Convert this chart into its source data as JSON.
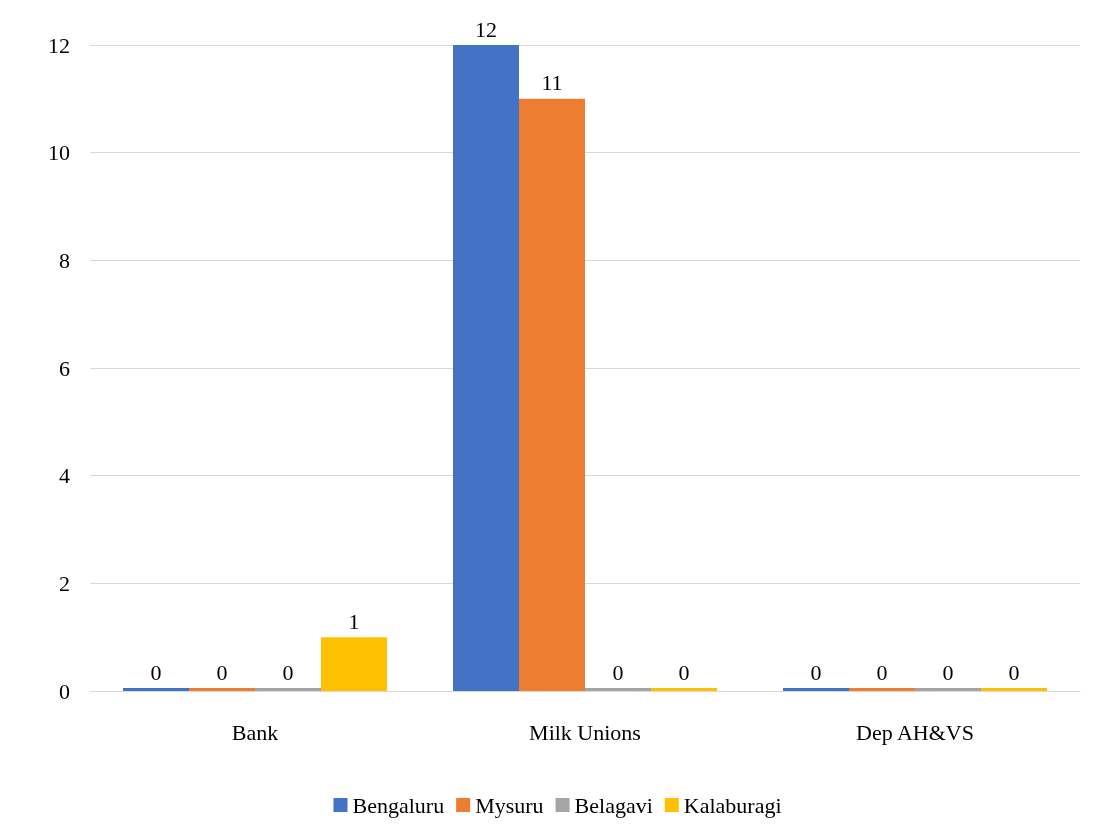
{
  "chart_data": {
    "type": "bar",
    "categories": [
      "Bank",
      "Milk Unions",
      "Dep AH&VS"
    ],
    "series": [
      {
        "name": "Bengaluru",
        "color": "#4472c4",
        "values": [
          0,
          12,
          0
        ]
      },
      {
        "name": "Mysuru",
        "color": "#ed7d31",
        "values": [
          0,
          11,
          0
        ]
      },
      {
        "name": "Belagavi",
        "color": "#a5a5a5",
        "values": [
          0,
          0,
          0
        ]
      },
      {
        "name": "Kalaburagi",
        "color": "#ffc000",
        "values": [
          1,
          0,
          0
        ]
      }
    ],
    "ylim": [
      0,
      12
    ],
    "yticks": [
      0,
      2,
      4,
      6,
      8,
      10,
      12
    ],
    "grid": "y",
    "legend": "bottom",
    "data_labels": true
  }
}
